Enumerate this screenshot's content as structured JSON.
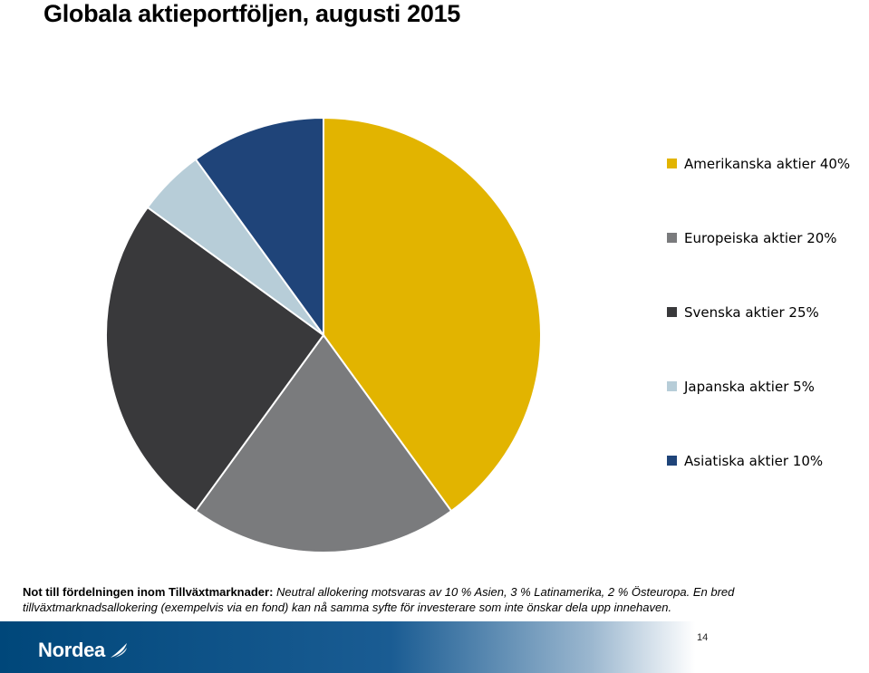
{
  "title": "Globala aktieportföljen, augusti 2015",
  "chart_data": {
    "type": "pie",
    "categories": [
      "Amerikanska aktier 40%",
      "Europeiska aktier 20%",
      "Svenska aktier 25%",
      "Japanska aktier 5%",
      "Asiatiska aktier 10%"
    ],
    "values": [
      40,
      20,
      25,
      5,
      10
    ],
    "colors": [
      "#e2b400",
      "#7a7b7d",
      "#39393b",
      "#b7cdd8",
      "#1f4479"
    ],
    "legend_position": "right"
  },
  "note": {
    "label": "Not till fördelningen inom Tillväxtmarknader:",
    "text": "Neutral allokering motsvaras av 10 % Asien, 3 % Latinamerika, 2 % Östeuropa. En bred tillväxtmarknadsallokering (exempelvis via en fond) kan nå samma syfte för investerare som inte önskar dela upp innehaven."
  },
  "footer": {
    "logo_text": "Nordea",
    "page_number": "14"
  }
}
